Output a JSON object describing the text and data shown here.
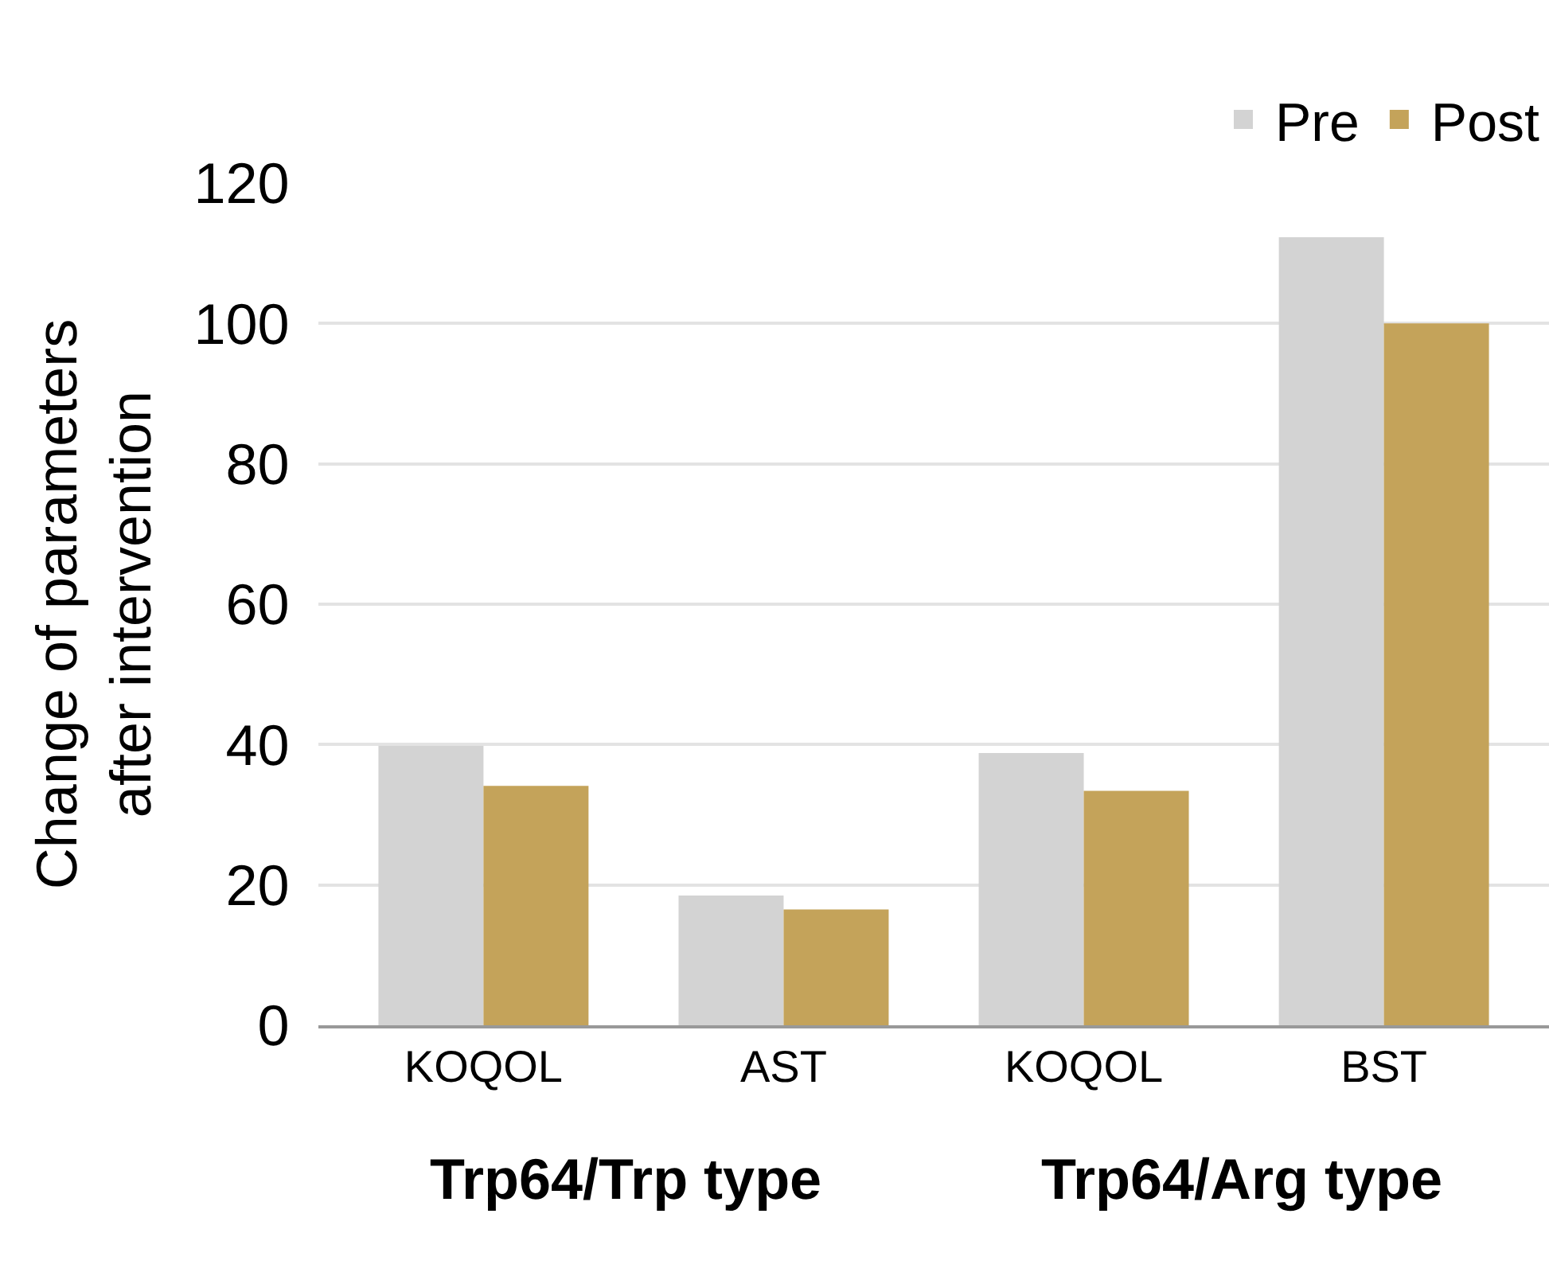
{
  "chart_data": {
    "type": "bar",
    "ylabel": "Change of parameters\nafter intervention",
    "categories": [
      "KOQOL",
      "AST",
      "KOQOL",
      "BST"
    ],
    "series": [
      {
        "name": "Pre",
        "color": "#d3d3d3",
        "values": [
          39.8,
          18.5,
          38.8,
          112.3
        ]
      },
      {
        "name": "Post",
        "color": "#c4a35a",
        "values": [
          34.1,
          16.5,
          33.4,
          100.0
        ]
      }
    ],
    "ylim": [
      0,
      120
    ],
    "yticks": [
      0,
      20,
      40,
      60,
      80,
      100,
      120
    ],
    "grid": "y",
    "legend": "top right",
    "annotations": [
      "Trp64/Trp type",
      "Trp64/Arg type"
    ]
  }
}
